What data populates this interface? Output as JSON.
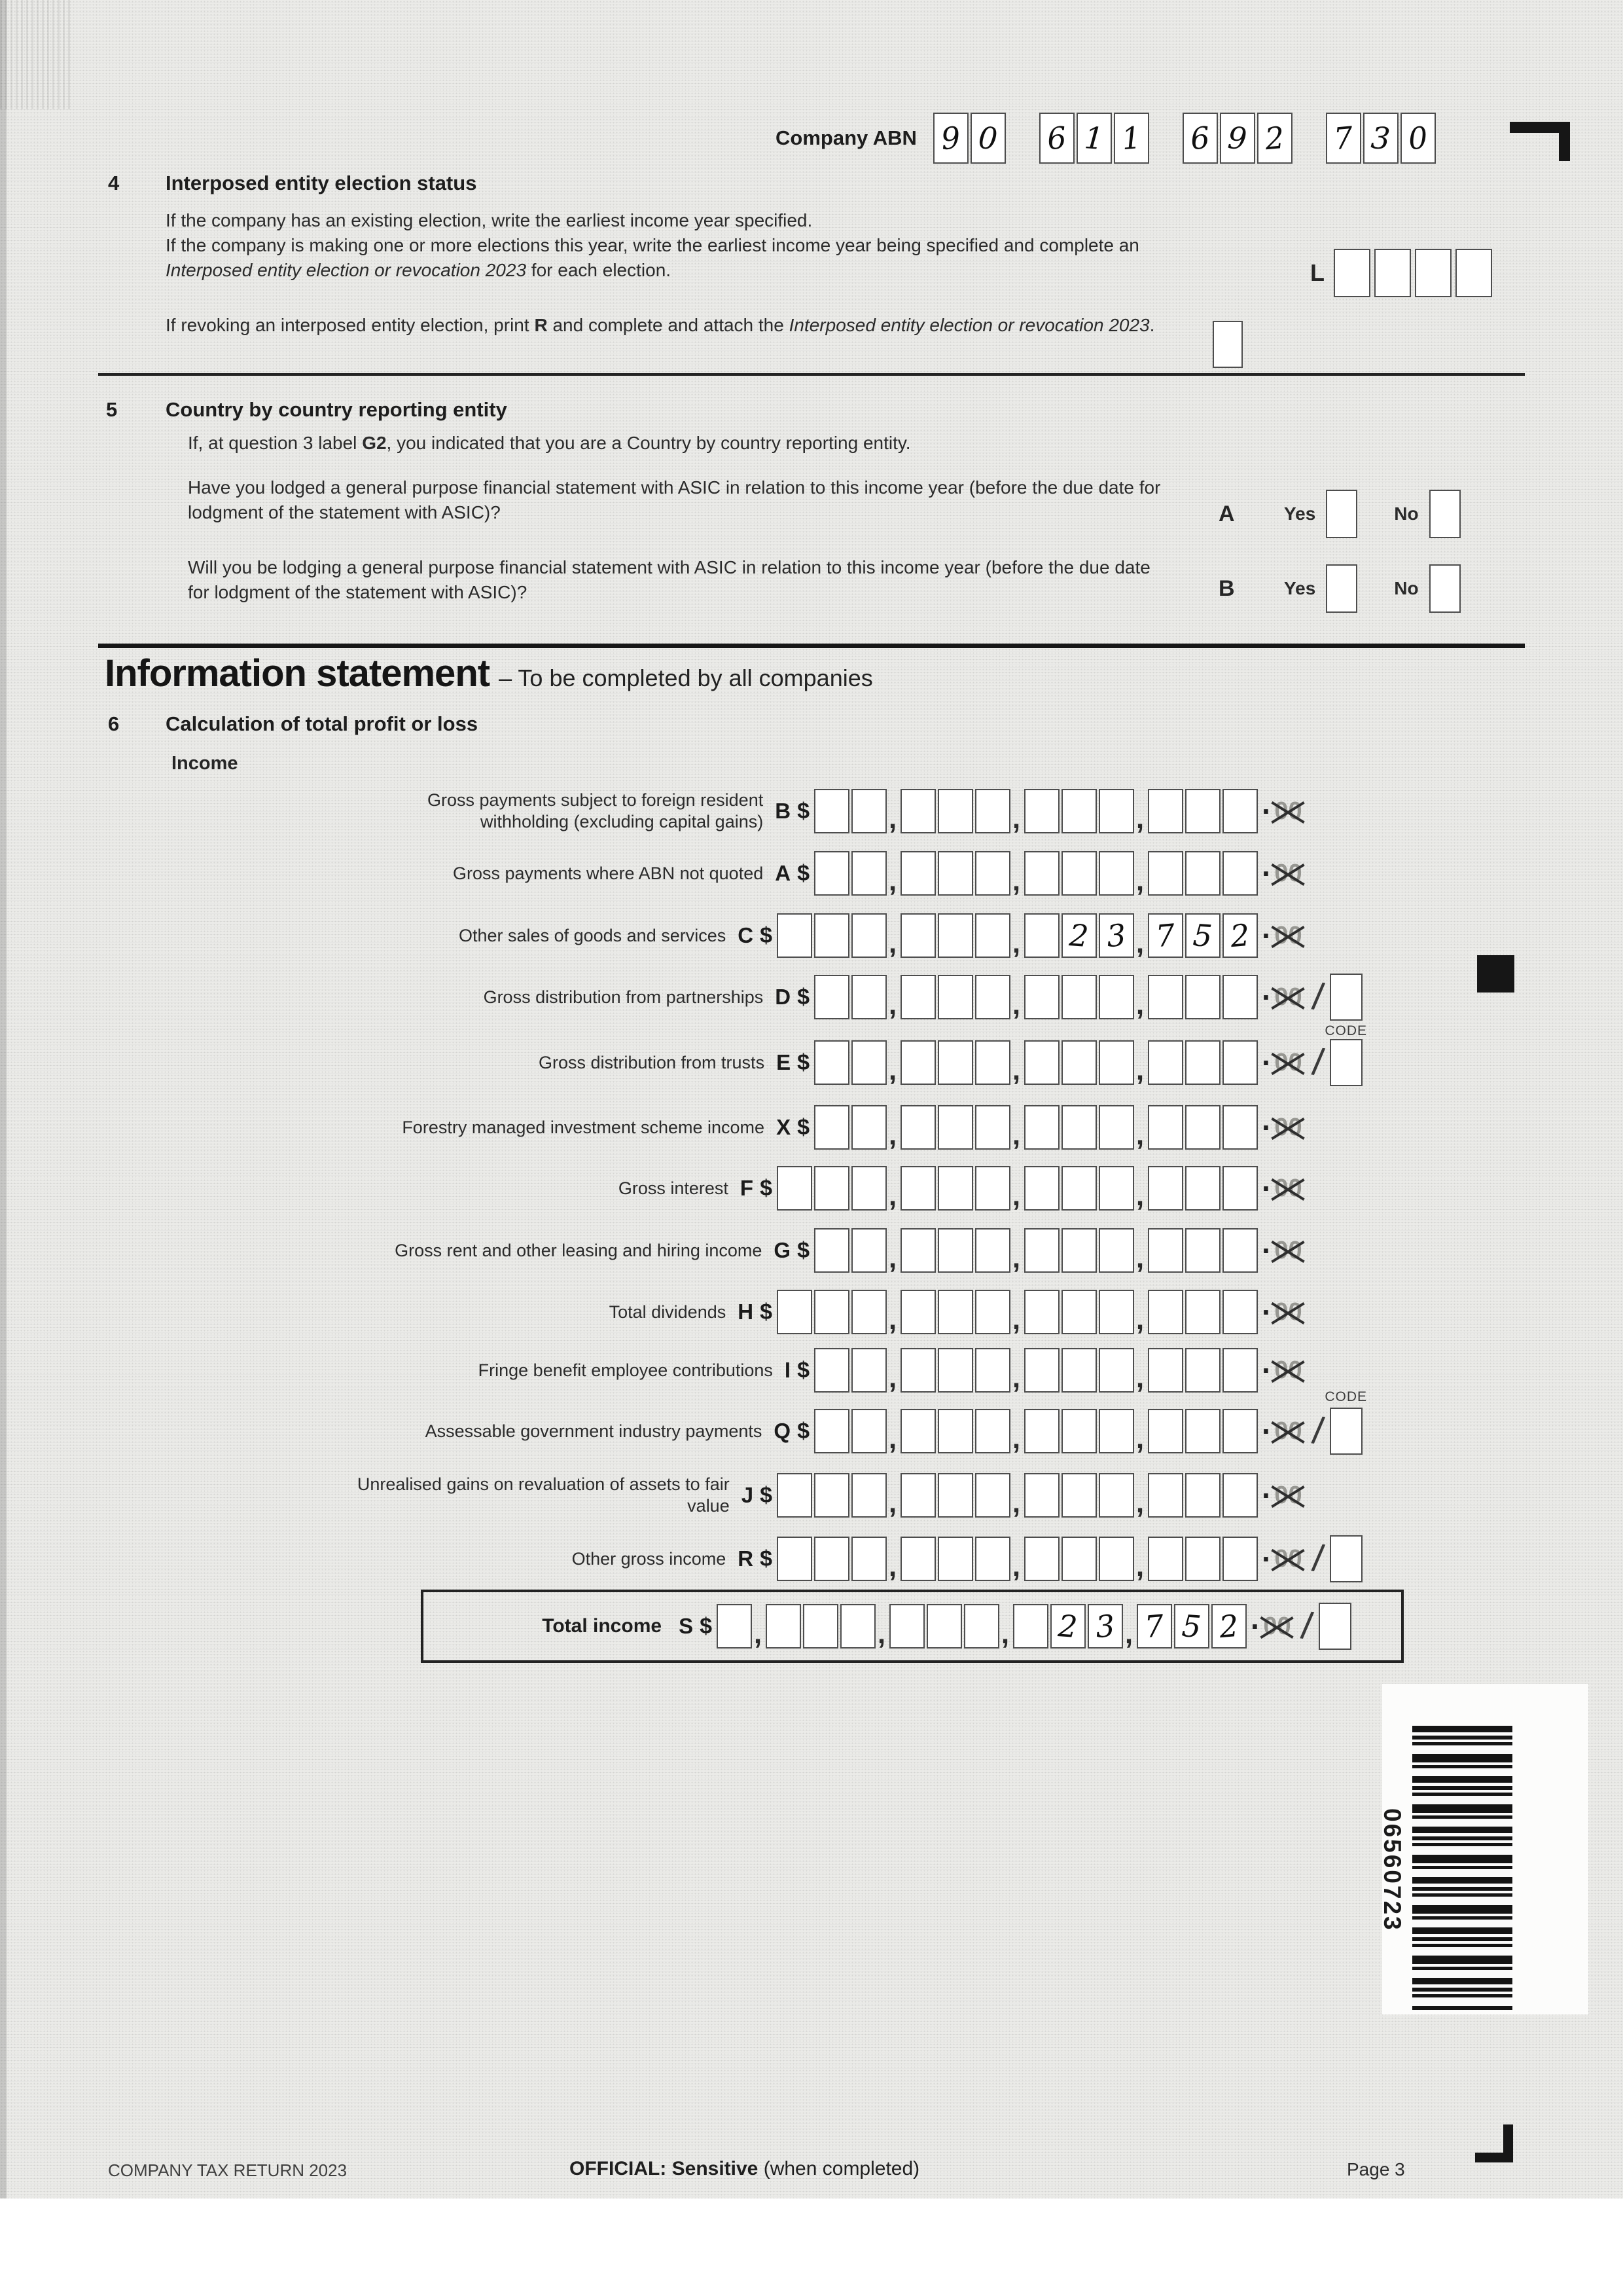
{
  "header": {
    "abn_label": "Company ABN",
    "abn_groups": [
      [
        "9",
        "0"
      ],
      [
        "6",
        "1",
        "1"
      ],
      [
        "6",
        "9",
        "2"
      ],
      [
        "7",
        "3",
        "0"
      ]
    ]
  },
  "section4": {
    "number": "4",
    "title": "Interposed entity election status",
    "para1_line1": "If the company has an existing election, write the earliest income year specified.",
    "para1_rest_pre": "If the company is making one or more elections this year, write the earliest income year being specified and complete an ",
    "para1_italic": "Interposed entity election or revocation 2023",
    "para1_rest_post": " for each election.",
    "l_label": "L",
    "para2_pre": "If revoking an interposed entity election, print ",
    "para2_bold": "R",
    "para2_mid": " and complete and attach the ",
    "para2_italic": "Interposed entity election or revocation 2023",
    "para2_period": "."
  },
  "section5": {
    "number": "5",
    "title": "Country by country reporting entity",
    "intro_pre": "If, at question 3 label ",
    "intro_bold": "G2",
    "intro_post": ", you indicated that you are a Country by country reporting entity.",
    "qa": {
      "text": "Have you lodged a general purpose financial statement with ASIC in relation to this income year (before the due date for lodgment of the statement with ASIC)?",
      "letter": "A",
      "yes": "Yes",
      "no": "No"
    },
    "qb": {
      "text": "Will you be lodging a general purpose financial statement with ASIC in relation to this income year (before the due date for lodgment of the statement with ASIC)?",
      "letter": "B",
      "yes": "Yes",
      "no": "No"
    }
  },
  "info_statement": {
    "title": "Information statement",
    "subtitle": "– To be completed by all companies"
  },
  "section6": {
    "number": "6",
    "title": "Calculation of total profit or loss",
    "income_heading": "Income"
  },
  "symbols": {
    "dollar": "$",
    "cents_dot": "·",
    "cents_zeros": "00",
    "comma": ",",
    "slash": "/"
  },
  "income_rows": [
    {
      "label": "Gross payments subject to foreign resident withholding (excluding capital gains)",
      "letter": "B",
      "groups": [
        2,
        3,
        3,
        3
      ],
      "value": ""
    },
    {
      "label": "Gross payments where ABN not quoted",
      "letter": "A",
      "groups": [
        2,
        3,
        3,
        3
      ],
      "value": ""
    },
    {
      "label": "Other sales of goods and services",
      "letter": "C",
      "groups": [
        3,
        3,
        3,
        3
      ],
      "value": "23752"
    },
    {
      "label": "Gross distribution from partnerships",
      "letter": "D",
      "groups": [
        2,
        3,
        3,
        3
      ],
      "value": "",
      "slash": true,
      "code_label": "CODE",
      "code_label_pos": "below"
    },
    {
      "label": "Gross distribution from trusts",
      "letter": "E",
      "groups": [
        2,
        3,
        3,
        3
      ],
      "value": "",
      "slash": true
    },
    {
      "label": "Forestry managed investment scheme income",
      "letter": "X",
      "groups": [
        2,
        3,
        3,
        3
      ],
      "value": ""
    },
    {
      "label": "Gross interest",
      "letter": "F",
      "groups": [
        3,
        3,
        3,
        3
      ],
      "value": ""
    },
    {
      "label": "Gross rent and other leasing and hiring income",
      "letter": "G",
      "groups": [
        2,
        3,
        3,
        3
      ],
      "value": ""
    },
    {
      "label": "Total dividends",
      "letter": "H",
      "groups": [
        3,
        3,
        3,
        3
      ],
      "value": ""
    },
    {
      "label": "Fringe benefit employee contributions",
      "letter": "I",
      "groups": [
        2,
        3,
        3,
        3
      ],
      "value": ""
    },
    {
      "label": "Assessable government industry payments",
      "letter": "Q",
      "groups": [
        2,
        3,
        3,
        3
      ],
      "value": "",
      "slash": true,
      "code_label": "CODE",
      "code_label_pos": "above"
    },
    {
      "label": "Unrealised gains on revaluation of assets to fair value",
      "letter": "J",
      "groups": [
        3,
        3,
        3,
        3
      ],
      "value": ""
    },
    {
      "label": "Other gross income",
      "letter": "R",
      "groups": [
        3,
        3,
        3,
        3
      ],
      "value": "",
      "slash": true
    }
  ],
  "total_row": {
    "label": "Total income",
    "letter": "S",
    "groups": [
      1,
      3,
      3,
      3,
      3
    ],
    "value": "23752",
    "slash": true
  },
  "barcode": {
    "number": "06560723"
  },
  "footer": {
    "left": "COMPANY TAX RETURN 2023",
    "center_bold": "OFFICIAL: Sensitive",
    "center_rest": " (when completed)",
    "right": "Page 3"
  }
}
